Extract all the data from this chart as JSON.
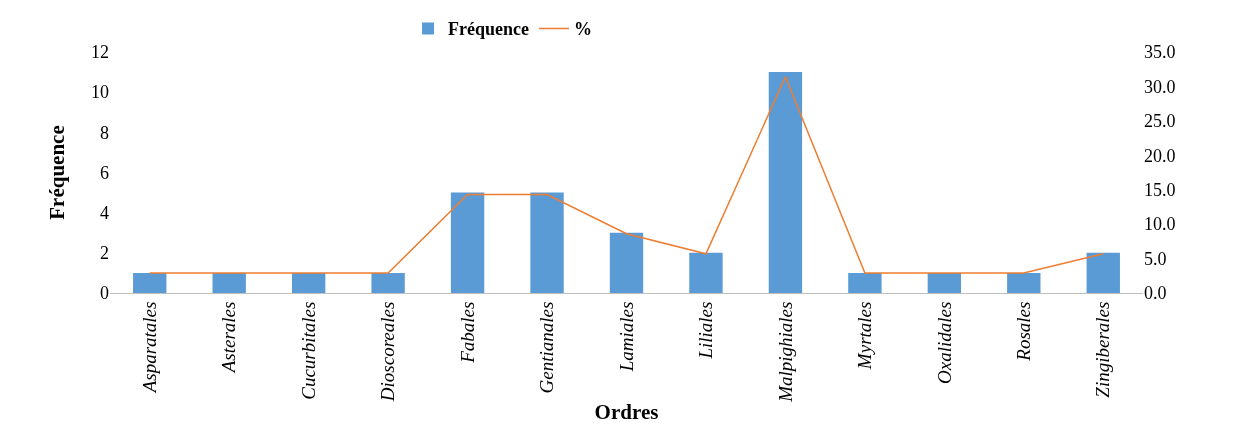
{
  "chart_data": {
    "type": "bar",
    "xlabel": "Ordres",
    "ylabel": "Fréquence",
    "categories": [
      "Asparatales",
      "Asterales",
      "Cucurbitales",
      "Dioscoreales",
      "Fabales",
      "Gentianales",
      "Lamiales",
      "Liliales",
      "Malpighiales",
      "Myrtales",
      "Oxalidales",
      "Rosales",
      "Zingiberales"
    ],
    "series": [
      {
        "name": "Fréquence",
        "color": "#5b9bd5",
        "values": [
          1,
          1,
          1,
          1,
          5,
          5,
          3,
          2,
          11,
          1,
          1,
          1,
          2
        ]
      },
      {
        "name": "%",
        "type": "line",
        "axis": "y2",
        "color": "#ed7d31",
        "values": [
          2.9,
          2.9,
          2.9,
          2.9,
          14.3,
          14.3,
          8.6,
          5.7,
          31.4,
          2.9,
          2.9,
          2.9,
          5.7
        ]
      }
    ],
    "ylim": [
      0,
      12
    ],
    "yticks": [
      0,
      2,
      4,
      6,
      8,
      10,
      12
    ],
    "y2lim": [
      0,
      35
    ],
    "y2ticks": [
      {
        "value": 0,
        "label": "0.0"
      },
      {
        "value": 5,
        "label": "5.0"
      },
      {
        "value": 10,
        "label": "10.0"
      },
      {
        "value": 15,
        "label": "15.0"
      },
      {
        "value": 20,
        "label": "20.0"
      },
      {
        "value": 25,
        "label": "25.0"
      },
      {
        "value": 30,
        "label": "30.0"
      },
      {
        "value": 35,
        "label": "35.0"
      }
    ],
    "grid": false,
    "legend": "top",
    "marker": "none"
  }
}
